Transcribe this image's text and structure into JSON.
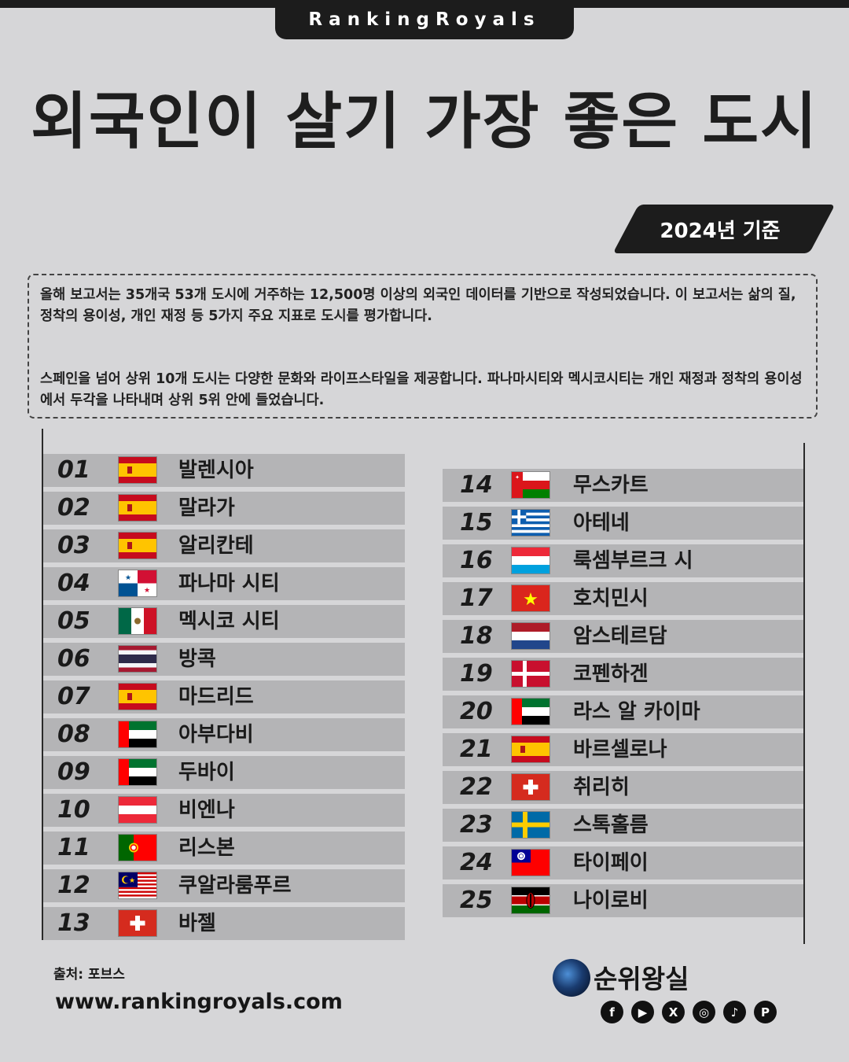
{
  "brand": "RankingRoyals",
  "title": "외국인이 살기 가장 좋은 도시",
  "date_badge": "2024년 기준",
  "description": {
    "p1": "올해 보고서는 35개국 53개 도시에 거주하는 12,500명 이상의 외국인 데이터를 기반으로 작성되었습니다. 이 보고서는 삶의 질, 정착의 용이성, 개인 재정 등 5가지 주요 지표로 도시를 평가합니다.",
    "p2": "스페인을 넘어 상위 10개 도시는 다양한 문화와 라이프스타일을 제공합니다. 파나마시티와 멕시코시티는 개인 재정과 정착의 용이성에서 두각을 나타내며 상위 5위 안에 들었습니다."
  },
  "rankings_left": [
    {
      "rank": "01",
      "city": "발렌시아",
      "flag": "spain"
    },
    {
      "rank": "02",
      "city": "말라가",
      "flag": "spain"
    },
    {
      "rank": "03",
      "city": "알리칸테",
      "flag": "spain"
    },
    {
      "rank": "04",
      "city": "파나마 시티",
      "flag": "panama"
    },
    {
      "rank": "05",
      "city": "멕시코 시티",
      "flag": "mexico"
    },
    {
      "rank": "06",
      "city": "방콕",
      "flag": "thailand"
    },
    {
      "rank": "07",
      "city": "마드리드",
      "flag": "spain"
    },
    {
      "rank": "08",
      "city": "아부다비",
      "flag": "uae"
    },
    {
      "rank": "09",
      "city": "두바이",
      "flag": "uae"
    },
    {
      "rank": "10",
      "city": "비엔나",
      "flag": "austria"
    },
    {
      "rank": "11",
      "city": "리스본",
      "flag": "portugal"
    },
    {
      "rank": "12",
      "city": "쿠알라룸푸르",
      "flag": "malaysia"
    },
    {
      "rank": "13",
      "city": "바젤",
      "flag": "switzerland"
    }
  ],
  "rankings_right": [
    {
      "rank": "14",
      "city": "무스카트",
      "flag": "oman"
    },
    {
      "rank": "15",
      "city": "아테네",
      "flag": "greece"
    },
    {
      "rank": "16",
      "city": "룩셈부르크 시",
      "flag": "luxembourg"
    },
    {
      "rank": "17",
      "city": "호치민시",
      "flag": "vietnam"
    },
    {
      "rank": "18",
      "city": "암스테르담",
      "flag": "netherlands"
    },
    {
      "rank": "19",
      "city": "코펜하겐",
      "flag": "denmark"
    },
    {
      "rank": "20",
      "city": "라스 알 카이마",
      "flag": "uae"
    },
    {
      "rank": "21",
      "city": "바르셀로나",
      "flag": "spain"
    },
    {
      "rank": "22",
      "city": "취리히",
      "flag": "switzerland"
    },
    {
      "rank": "23",
      "city": "스톡홀름",
      "flag": "sweden"
    },
    {
      "rank": "24",
      "city": "타이페이",
      "flag": "taiwan"
    },
    {
      "rank": "25",
      "city": "나이로비",
      "flag": "kenya"
    }
  ],
  "source": "출처: 포브스",
  "website": "www.rankingroyals.com",
  "logo_name": "순위왕실",
  "socials": [
    {
      "icon": "facebook-icon",
      "glyph": "f"
    },
    {
      "icon": "youtube-icon",
      "glyph": "▶"
    },
    {
      "icon": "x-icon",
      "glyph": "X"
    },
    {
      "icon": "instagram-icon",
      "glyph": "◎"
    },
    {
      "icon": "tiktok-icon",
      "glyph": "♪"
    },
    {
      "icon": "pinterest-icon",
      "glyph": "P"
    }
  ],
  "colors": {
    "background": "#d6d6d8",
    "dark": "#1c1c1c",
    "row": "#b4b4b6"
  }
}
